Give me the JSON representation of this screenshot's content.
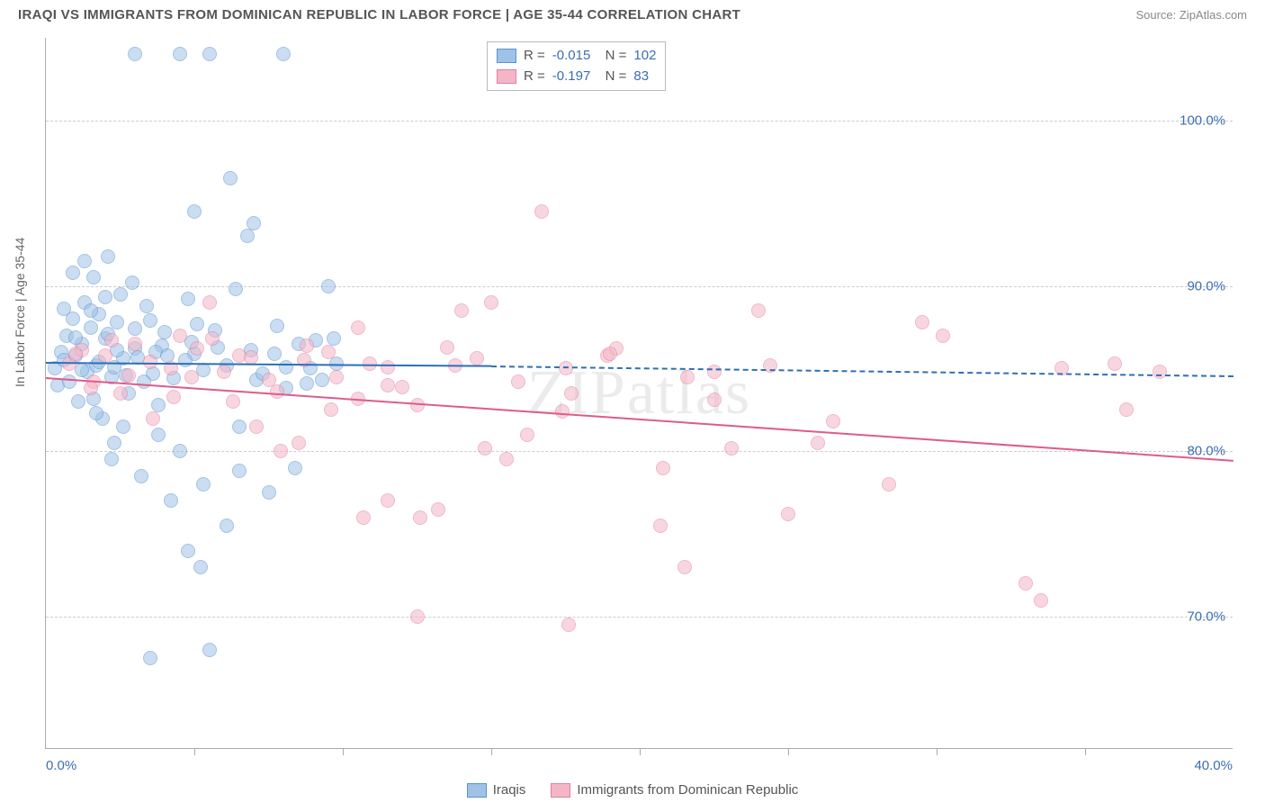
{
  "title": "IRAQI VS IMMIGRANTS FROM DOMINICAN REPUBLIC IN LABOR FORCE | AGE 35-44 CORRELATION CHART",
  "source": "Source: ZipAtlas.com",
  "watermark": "ZIPatlas",
  "chart": {
    "type": "scatter",
    "y_axis_label": "In Labor Force | Age 35-44",
    "background_color": "#ffffff",
    "grid_color": "#cccccc",
    "axis_color": "#aaaaaa",
    "tick_label_color": "#3b6db3",
    "axis_label_color": "#666666",
    "axis_label_fontsize": 14,
    "tick_fontsize": 15,
    "xlim": [
      0,
      40
    ],
    "ylim": [
      62,
      105
    ],
    "x_ticks": [
      0,
      40
    ],
    "x_tick_labels": [
      "0.0%",
      "40.0%"
    ],
    "x_minor_ticks": [
      5,
      10,
      15,
      20,
      25,
      30,
      35
    ],
    "y_ticks": [
      70,
      80,
      90,
      100
    ],
    "y_tick_labels": [
      "70.0%",
      "80.0%",
      "90.0%",
      "100.0%"
    ],
    "marker_radius": 8,
    "marker_opacity": 0.55,
    "series": [
      {
        "name": "Iraqis",
        "fill_color": "#9fc2e7",
        "stroke_color": "#5a93cf",
        "r_value": "-0.015",
        "n_value": "102",
        "trend": {
          "x1": 0,
          "y1": 85.4,
          "x2_solid": 15,
          "y2_solid": 85.2,
          "x2": 40,
          "y2": 84.6,
          "solid_color": "#2f6fb5",
          "dash_color": "#2f6fb5",
          "line_width": 2
        },
        "points": [
          [
            0.3,
            85
          ],
          [
            0.4,
            84
          ],
          [
            0.5,
            86
          ],
          [
            0.6,
            85.5
          ],
          [
            0.7,
            87
          ],
          [
            0.8,
            84.2
          ],
          [
            0.9,
            88
          ],
          [
            1.0,
            85.8
          ],
          [
            1.1,
            83
          ],
          [
            1.2,
            86.5
          ],
          [
            1.3,
            89
          ],
          [
            1.4,
            84.8
          ],
          [
            1.5,
            87.5
          ],
          [
            1.6,
            90.5
          ],
          [
            1.7,
            85.2
          ],
          [
            1.8,
            88.3
          ],
          [
            1.9,
            82
          ],
          [
            2.0,
            86.8
          ],
          [
            2.1,
            91.8
          ],
          [
            2.2,
            84.5
          ],
          [
            2.3,
            80.5
          ],
          [
            2.4,
            87.8
          ],
          [
            2.5,
            89.5
          ],
          [
            2.6,
            85.6
          ],
          [
            2.8,
            83.5
          ],
          [
            3.0,
            86.2
          ],
          [
            3.2,
            78.5
          ],
          [
            3.4,
            88.8
          ],
          [
            3.6,
            84.7
          ],
          [
            3.8,
            81
          ],
          [
            3.0,
            104
          ],
          [
            4.0,
            87.2
          ],
          [
            4.2,
            77
          ],
          [
            4.5,
            104
          ],
          [
            4.8,
            89.2
          ],
          [
            5.0,
            85.9
          ],
          [
            5.0,
            94.5
          ],
          [
            5.3,
            78
          ],
          [
            5.5,
            104
          ],
          [
            5.8,
            86.3
          ],
          [
            6.1,
            75.5
          ],
          [
            6.4,
            89.8
          ],
          [
            3.5,
            67.5
          ],
          [
            6.8,
            93
          ],
          [
            7.1,
            84.3
          ],
          [
            5.5,
            68
          ],
          [
            7.5,
            77.5
          ],
          [
            7.8,
            87.6
          ],
          [
            8.1,
            85.1
          ],
          [
            8.4,
            79
          ],
          [
            8.0,
            104
          ],
          [
            8.8,
            84.1
          ],
          [
            9.1,
            86.7
          ],
          [
            9.5,
            90
          ],
          [
            9.8,
            85.3
          ],
          [
            6.2,
            96.5
          ],
          [
            7.0,
            93.8
          ],
          [
            5.2,
            73
          ],
          [
            1.0,
            86.9
          ],
          [
            1.2,
            84.9
          ],
          [
            1.5,
            88.5
          ],
          [
            1.8,
            85.4
          ],
          [
            2.1,
            87.1
          ],
          [
            2.4,
            86.1
          ],
          [
            2.7,
            84.6
          ],
          [
            3.1,
            85.7
          ],
          [
            3.5,
            87.9
          ],
          [
            3.9,
            86.4
          ],
          [
            4.3,
            84.4
          ],
          [
            4.7,
            85.5
          ],
          [
            0.9,
            90.8
          ],
          [
            1.3,
            91.5
          ],
          [
            1.6,
            83.2
          ],
          [
            2.0,
            89.3
          ],
          [
            2.3,
            85.1
          ],
          [
            2.6,
            81.5
          ],
          [
            3.0,
            87.4
          ],
          [
            3.3,
            84.2
          ],
          [
            3.7,
            86
          ],
          [
            4.1,
            85.8
          ],
          [
            4.5,
            80
          ],
          [
            4.9,
            86.6
          ],
          [
            5.3,
            84.9
          ],
          [
            5.7,
            87.3
          ],
          [
            6.1,
            85.2
          ],
          [
            6.5,
            78.8
          ],
          [
            6.9,
            86.1
          ],
          [
            7.3,
            84.7
          ],
          [
            7.7,
            85.9
          ],
          [
            8.1,
            83.8
          ],
          [
            8.5,
            86.5
          ],
          [
            8.9,
            85
          ],
          [
            9.3,
            84.3
          ],
          [
            9.7,
            86.8
          ],
          [
            6.5,
            81.5
          ],
          [
            4.8,
            74
          ],
          [
            2.9,
            90.2
          ],
          [
            1.7,
            82.3
          ],
          [
            0.6,
            88.6
          ],
          [
            2.2,
            79.5
          ],
          [
            3.8,
            82.8
          ],
          [
            5.1,
            87.7
          ]
        ]
      },
      {
        "name": "Immigrants from Dominican Republic",
        "fill_color": "#f4b6c7",
        "stroke_color": "#e47e9f",
        "r_value": "-0.197",
        "n_value": "83",
        "trend": {
          "x1": 0,
          "y1": 84.5,
          "x2_solid": 40,
          "y2_solid": 79.5,
          "x2": 40,
          "y2": 79.5,
          "solid_color": "#e05a8a",
          "dash_color": "#e05a8a",
          "line_width": 2
        },
        "points": [
          [
            0.8,
            85.3
          ],
          [
            1.2,
            86.1
          ],
          [
            1.6,
            84.2
          ],
          [
            2.0,
            85.8
          ],
          [
            2.5,
            83.5
          ],
          [
            3.0,
            86.5
          ],
          [
            3.6,
            82
          ],
          [
            4.2,
            85
          ],
          [
            4.9,
            84.5
          ],
          [
            5.6,
            86.8
          ],
          [
            6.3,
            83
          ],
          [
            7.1,
            81.5
          ],
          [
            7.9,
            80
          ],
          [
            8.7,
            85.5
          ],
          [
            9.6,
            82.5
          ],
          [
            10.5,
            87.5
          ],
          [
            11.5,
            84
          ],
          [
            12.6,
            76
          ],
          [
            13.8,
            85.2
          ],
          [
            15.0,
            89
          ],
          [
            16.7,
            94.5
          ],
          [
            15.5,
            79.5
          ],
          [
            17.6,
            69.5
          ],
          [
            18.9,
            85.8
          ],
          [
            17.5,
            85
          ],
          [
            21.6,
            84.5
          ],
          [
            23.1,
            80.2
          ],
          [
            24.0,
            88.5
          ],
          [
            21.5,
            73
          ],
          [
            26.0,
            80.5
          ],
          [
            28.4,
            78
          ],
          [
            30.2,
            87
          ],
          [
            29.5,
            87.8
          ],
          [
            33.0,
            72
          ],
          [
            33.5,
            71
          ],
          [
            34.2,
            85
          ],
          [
            36.0,
            85.3
          ],
          [
            36.4,
            82.5
          ],
          [
            37.5,
            84.8
          ],
          [
            25.0,
            76.2
          ],
          [
            11.5,
            77
          ],
          [
            12.5,
            70
          ],
          [
            14,
            88.5
          ],
          [
            10.7,
            76
          ],
          [
            14.8,
            80.2
          ],
          [
            16.2,
            81
          ],
          [
            17.7,
            83.5
          ],
          [
            19.2,
            86.2
          ],
          [
            20.8,
            79
          ],
          [
            22.5,
            84.8
          ],
          [
            4.5,
            87
          ],
          [
            5.5,
            89
          ],
          [
            6.5,
            85.8
          ],
          [
            7.5,
            84.3
          ],
          [
            8.5,
            80.5
          ],
          [
            9.5,
            86
          ],
          [
            10.5,
            83.2
          ],
          [
            11.5,
            85.1
          ],
          [
            12.5,
            82.8
          ],
          [
            13.5,
            86.3
          ],
          [
            1.0,
            85.9
          ],
          [
            1.5,
            83.8
          ],
          [
            2.2,
            86.7
          ],
          [
            2.8,
            84.6
          ],
          [
            3.5,
            85.4
          ],
          [
            4.3,
            83.3
          ],
          [
            5.1,
            86.2
          ],
          [
            6.0,
            84.8
          ],
          [
            6.9,
            85.7
          ],
          [
            7.8,
            83.6
          ],
          [
            8.8,
            86.4
          ],
          [
            9.8,
            84.5
          ],
          [
            10.9,
            85.3
          ],
          [
            12.0,
            83.9
          ],
          [
            13.2,
            76.5
          ],
          [
            14.5,
            85.6
          ],
          [
            15.9,
            84.2
          ],
          [
            17.4,
            82.4
          ],
          [
            19.0,
            85.9
          ],
          [
            20.7,
            75.5
          ],
          [
            22.5,
            83.1
          ],
          [
            24.4,
            85.2
          ],
          [
            26.5,
            81.8
          ]
        ]
      }
    ]
  },
  "bottom_legend": [
    {
      "label": "Iraqis",
      "fill": "#9fc2e7",
      "stroke": "#5a93cf"
    },
    {
      "label": "Immigrants from Dominican Republic",
      "fill": "#f4b6c7",
      "stroke": "#e47e9f"
    }
  ]
}
